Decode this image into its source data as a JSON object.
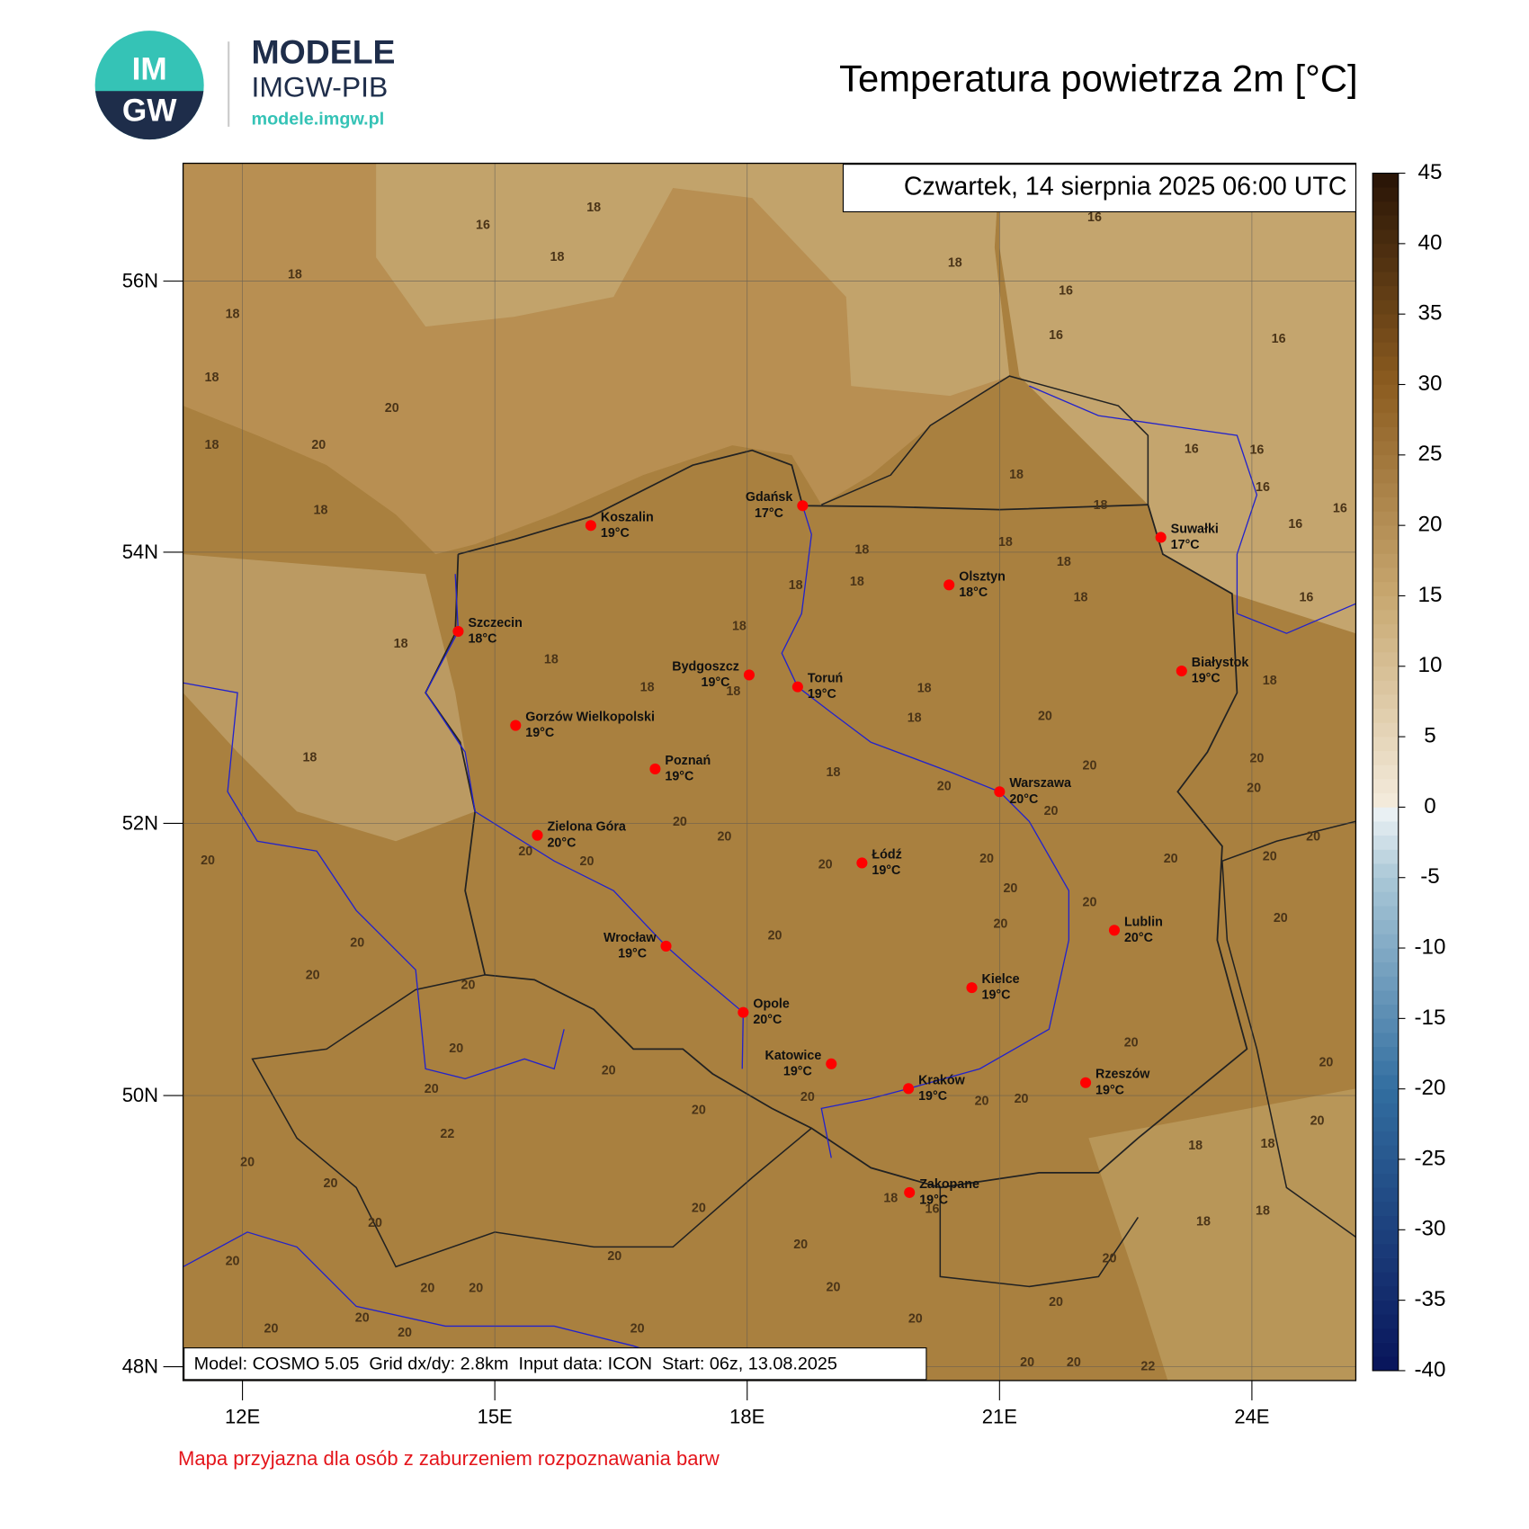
{
  "header": {
    "logo_top": "IM",
    "logo_bottom": "GW",
    "brand": "MODELE",
    "org": "IMGW-PIB",
    "url": "modele.imgw.pl"
  },
  "title": "Temperatura powietrza 2m [°C]",
  "valid_time": "Czwartek, 14 sierpnia 2025 06:00 UTC",
  "model_info": "Model: COSMO 5.05  Grid dx/dy: 2.8km  Input data: ICON  Start: 06z, 13.08.2025",
  "note": "Mapa przyjazna dla osób z zaburzeniem rozpoznawania barw",
  "map": {
    "lat_labels": [
      "56N",
      "54N",
      "52N",
      "50N",
      "48N"
    ],
    "lon_labels": [
      "12E",
      "15E",
      "18E",
      "21E",
      "24E"
    ],
    "cities": [
      {
        "name": "Koszalin",
        "temp": "19°C"
      },
      {
        "name": "Gdańsk",
        "temp": "17°C"
      },
      {
        "name": "Szczecin",
        "temp": "18°C"
      },
      {
        "name": "Suwałki",
        "temp": "17°C"
      },
      {
        "name": "Olsztyn",
        "temp": "18°C"
      },
      {
        "name": "Bydgoszcz",
        "temp": "19°C"
      },
      {
        "name": "Toruń",
        "temp": "19°C"
      },
      {
        "name": "Białystok",
        "temp": "19°C"
      },
      {
        "name": "Gorzów Wielkopolski",
        "temp": "19°C"
      },
      {
        "name": "Poznań",
        "temp": "19°C"
      },
      {
        "name": "Warszawa",
        "temp": "20°C"
      },
      {
        "name": "Zielona Góra",
        "temp": "20°C"
      },
      {
        "name": "Łódź",
        "temp": "19°C"
      },
      {
        "name": "Lublin",
        "temp": "20°C"
      },
      {
        "name": "Wrocław",
        "temp": "19°C"
      },
      {
        "name": "Kielce",
        "temp": "19°C"
      },
      {
        "name": "Opole",
        "temp": "20°C"
      },
      {
        "name": "Katowice",
        "temp": "19°C"
      },
      {
        "name": "Kraków",
        "temp": "19°C"
      },
      {
        "name": "Rzeszów",
        "temp": "19°C"
      },
      {
        "name": "Zakopane",
        "temp": "19°C"
      }
    ],
    "contour_labels": [
      "18",
      "16",
      "18",
      "18",
      "18",
      "18",
      "20",
      "20",
      "18",
      "18",
      "18",
      "16",
      "16",
      "16",
      "16",
      "16",
      "16",
      "16",
      "18",
      "18",
      "16",
      "16",
      "16",
      "18",
      "18",
      "18",
      "18",
      "18",
      "18",
      "18",
      "18",
      "18",
      "18",
      "18",
      "18",
      "18",
      "18",
      "20",
      "18",
      "18",
      "20",
      "20",
      "20",
      "20",
      "20",
      "20",
      "20",
      "20",
      "20",
      "20",
      "20",
      "20",
      "20",
      "20",
      "20",
      "20",
      "20",
      "20",
      "20",
      "20",
      "20",
      "20",
      "20",
      "20",
      "20",
      "20",
      "20",
      "20",
      "20",
      "20",
      "20",
      "20",
      "22",
      "20",
      "18",
      "18",
      "20",
      "20",
      "18",
      "16",
      "20",
      "18",
      "18",
      "20",
      "20",
      "20",
      "20",
      "20",
      "20",
      "20",
      "20",
      "20",
      "20",
      "20",
      "20",
      "20",
      "20",
      "20",
      "20",
      "22",
      "22"
    ]
  },
  "colorbar": {
    "range": [
      -40,
      45
    ],
    "ticks": [
      45,
      40,
      35,
      30,
      25,
      20,
      15,
      10,
      5,
      0,
      -5,
      -10,
      -15,
      -20,
      -25,
      -30,
      -35,
      -40
    ]
  }
}
